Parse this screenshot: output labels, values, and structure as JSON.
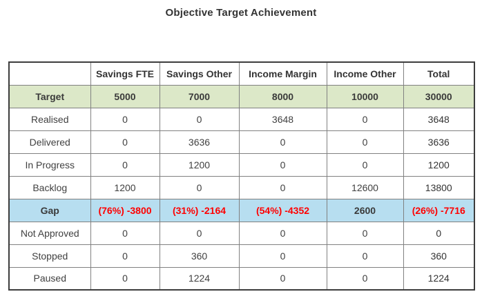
{
  "title": "Objective Target Achievement",
  "chart_data": {
    "type": "table",
    "title": "Objective Target Achievement",
    "columns": [
      "",
      "Savings FTE",
      "Savings Other",
      "Income Margin",
      "Income Other",
      "Total"
    ],
    "rows": [
      {
        "label": "Target",
        "style": "target",
        "values": [
          "5000",
          "7000",
          "8000",
          "10000",
          "30000"
        ]
      },
      {
        "label": "Realised",
        "style": "normal",
        "values": [
          "0",
          "0",
          "3648",
          "0",
          "3648"
        ]
      },
      {
        "label": "Delivered",
        "style": "normal",
        "values": [
          "0",
          "3636",
          "0",
          "0",
          "3636"
        ]
      },
      {
        "label": "In Progress",
        "style": "normal",
        "values": [
          "0",
          "1200",
          "0",
          "0",
          "1200"
        ]
      },
      {
        "label": "Backlog",
        "style": "normal",
        "values": [
          "1200",
          "0",
          "0",
          "12600",
          "13800"
        ]
      },
      {
        "label": "Gap",
        "style": "gap",
        "values": [
          "(76%) -3800",
          "(31%) -2164",
          "(54%) -4352",
          "2600",
          "(26%) -7716"
        ],
        "negative_flags": [
          true,
          true,
          true,
          false,
          true
        ]
      },
      {
        "label": "Not Approved",
        "style": "normal",
        "values": [
          "0",
          "0",
          "0",
          "0",
          "0"
        ]
      },
      {
        "label": "Stopped",
        "style": "normal",
        "values": [
          "0",
          "360",
          "0",
          "0",
          "360"
        ]
      },
      {
        "label": "Paused",
        "style": "normal",
        "values": [
          "0",
          "1224",
          "0",
          "0",
          "1224"
        ]
      }
    ]
  },
  "colors": {
    "target_row_bg": "#dce8c8",
    "gap_row_bg": "#b7def0",
    "negative_text": "#ff0000",
    "inner_border": "#808080",
    "outer_border": "#3c3c3c",
    "text": "#404040",
    "title_text": "#333333"
  }
}
